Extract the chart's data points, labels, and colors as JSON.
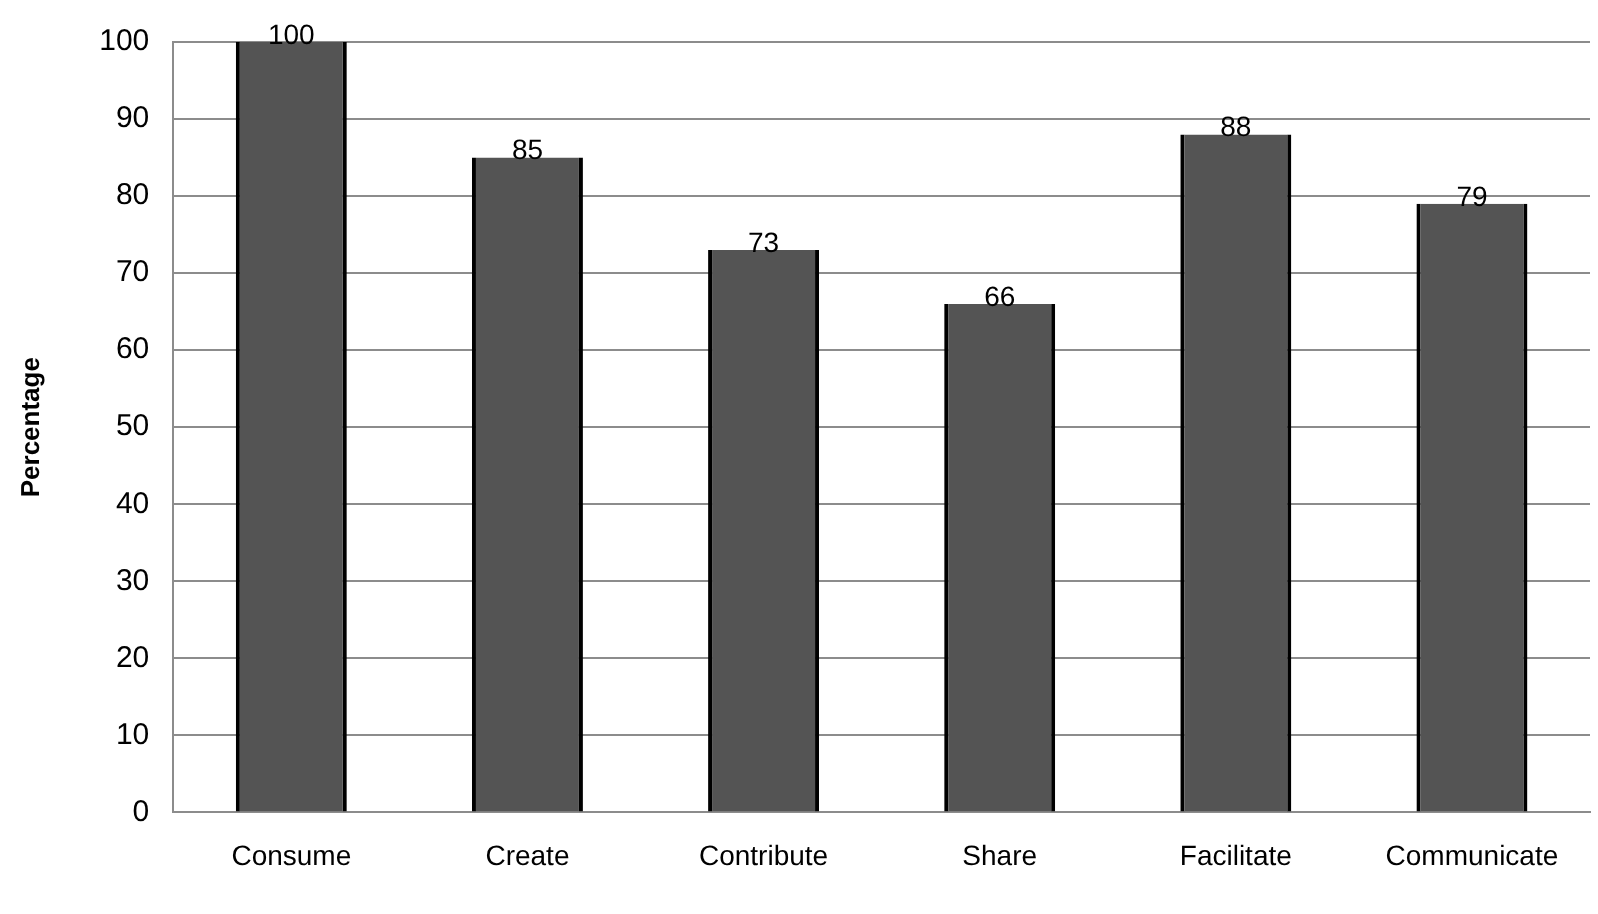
{
  "chart_data": {
    "type": "bar",
    "ylabel": "Percentage",
    "categories": [
      "Consume",
      "Create",
      "Contribute",
      "Share",
      "Facilitate",
      "Communicate"
    ],
    "values": [
      100,
      85,
      73,
      66,
      88,
      79
    ],
    "color": "#545454",
    "ylim": [
      0,
      100
    ],
    "yticks": [
      0,
      10,
      20,
      30,
      40,
      50,
      60,
      70,
      80,
      90,
      100
    ],
    "grid": "y",
    "legend": false,
    "data_labels": true
  }
}
